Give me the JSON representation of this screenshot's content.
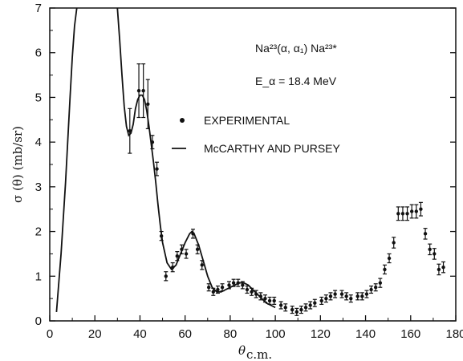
{
  "chart_data": {
    "type": "scatter",
    "xlabel": "θ",
    "xlabel_sub": "c.m.",
    "ylabel": "σ (θ)  (mb/sr)",
    "xlim": [
      0,
      180
    ],
    "ylim": [
      0,
      7
    ],
    "x_ticks": [
      0,
      20,
      40,
      60,
      80,
      100,
      120,
      140,
      160,
      180
    ],
    "y_ticks": [
      0,
      1,
      2,
      3,
      4,
      5,
      6,
      7
    ],
    "grid": false,
    "annotations": {
      "reaction": "Na²³(α, α₁) Na²³*",
      "energy": "E_α = 18.4 MeV"
    },
    "legend": {
      "placement": "middle-right",
      "items": [
        "EXPERIMENTAL",
        "McCARTHY AND PURSEY"
      ]
    },
    "series": [
      {
        "name": "EXPERIMENTAL",
        "kind": "points-with-errorbars",
        "x": [
          35.5,
          39.5,
          41.5,
          43.5,
          45.5,
          47.5,
          49.5,
          51.5,
          54.5,
          56.5,
          58.5,
          60.5,
          63.5,
          65.5,
          67.5,
          70.5,
          72.5,
          74.5,
          76.5,
          79.5,
          81.5,
          83.5,
          85.5,
          87.5,
          89.5,
          91.5,
          93.5,
          95.5,
          97.5,
          99.5,
          102.5,
          104.5,
          107.5,
          109.5,
          111.5,
          113.5,
          115.5,
          117.5,
          120.5,
          122.5,
          124.5,
          126.5,
          129.5,
          131.5,
          133.5,
          136.5,
          138.5,
          140.5,
          142.5,
          144.5,
          146.5,
          148.5,
          150.5,
          152.5,
          154.5,
          156.5,
          158.5,
          160.5,
          162.5,
          164.5,
          166.5,
          168.5,
          170.5,
          172.5,
          174.5
        ],
        "y": [
          4.25,
          5.15,
          5.15,
          4.85,
          4.0,
          3.4,
          1.9,
          1.0,
          1.2,
          1.45,
          1.6,
          1.5,
          1.95,
          1.6,
          1.25,
          0.75,
          0.65,
          0.7,
          0.75,
          0.8,
          0.85,
          0.85,
          0.8,
          0.7,
          0.65,
          0.6,
          0.55,
          0.5,
          0.45,
          0.45,
          0.35,
          0.3,
          0.25,
          0.2,
          0.25,
          0.3,
          0.35,
          0.4,
          0.45,
          0.5,
          0.55,
          0.6,
          0.6,
          0.55,
          0.5,
          0.55,
          0.55,
          0.6,
          0.7,
          0.75,
          0.85,
          1.15,
          1.4,
          1.75,
          2.4,
          2.4,
          2.4,
          2.45,
          2.45,
          2.5,
          1.95,
          1.6,
          1.5,
          1.15,
          1.2
        ],
        "err": [
          0.5,
          0.6,
          0.6,
          0.55,
          0.15,
          0.15,
          0.1,
          0.1,
          0.1,
          0.1,
          0.1,
          0.1,
          0.1,
          0.1,
          0.1,
          0.08,
          0.08,
          0.08,
          0.08,
          0.08,
          0.08,
          0.08,
          0.08,
          0.08,
          0.08,
          0.08,
          0.08,
          0.08,
          0.08,
          0.08,
          0.08,
          0.08,
          0.08,
          0.08,
          0.08,
          0.08,
          0.08,
          0.08,
          0.08,
          0.08,
          0.08,
          0.08,
          0.08,
          0.08,
          0.08,
          0.08,
          0.08,
          0.08,
          0.08,
          0.08,
          0.1,
          0.1,
          0.1,
          0.12,
          0.15,
          0.15,
          0.15,
          0.15,
          0.15,
          0.15,
          0.12,
          0.12,
          0.12,
          0.12,
          0.12
        ]
      },
      {
        "name": "McCARTHY AND PURSEY",
        "kind": "line",
        "x": [
          3,
          5,
          7,
          9,
          10,
          11,
          12,
          30,
          31,
          32,
          33,
          34,
          35,
          36,
          37,
          38,
          39,
          40,
          41,
          42,
          43,
          44,
          45,
          46,
          47,
          48,
          49,
          50,
          52,
          54,
          56,
          58,
          60,
          62,
          63,
          64,
          66,
          68,
          70,
          72,
          74,
          76,
          78,
          80,
          82,
          84,
          86,
          88,
          90,
          92,
          94,
          96,
          98,
          100
        ],
        "y": [
          0.2,
          1.5,
          3.1,
          5.0,
          5.9,
          6.6,
          7.0,
          7.0,
          6.3,
          5.5,
          4.8,
          4.35,
          4.15,
          4.2,
          4.4,
          4.75,
          4.95,
          5.05,
          5.05,
          4.95,
          4.7,
          4.35,
          3.95,
          3.55,
          3.1,
          2.6,
          2.15,
          1.75,
          1.3,
          1.15,
          1.25,
          1.5,
          1.75,
          1.95,
          2.0,
          1.95,
          1.7,
          1.35,
          1.0,
          0.75,
          0.65,
          0.65,
          0.7,
          0.75,
          0.8,
          0.85,
          0.85,
          0.8,
          0.7,
          0.6,
          0.5,
          0.4,
          0.35,
          0.3
        ]
      }
    ]
  }
}
